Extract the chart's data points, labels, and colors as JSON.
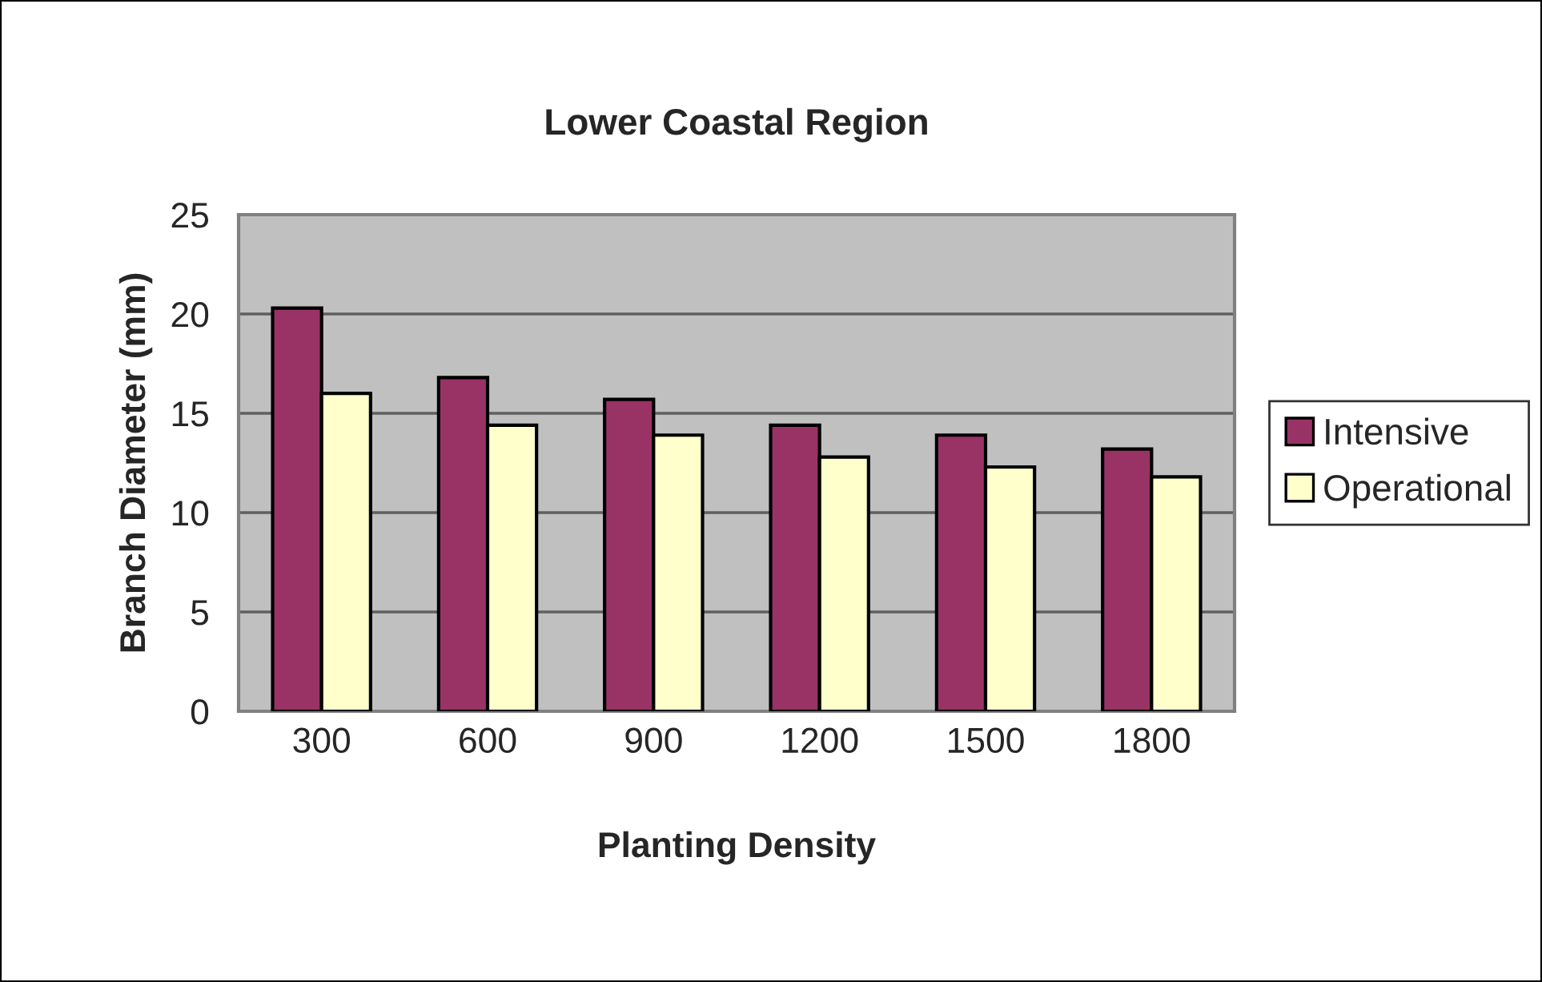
{
  "chart_data": {
    "type": "bar",
    "title": "Lower Coastal Region",
    "xlabel": "Planting Density",
    "ylabel": "Branch Diameter (mm)",
    "categories": [
      "300",
      "600",
      "900",
      "1200",
      "1500",
      "1800"
    ],
    "series": [
      {
        "name": "Intensive",
        "color": "#993366",
        "values": [
          20.3,
          16.8,
          15.7,
          14.4,
          13.9,
          13.2
        ]
      },
      {
        "name": "Operational",
        "color": "#ffffcc",
        "values": [
          16.0,
          14.4,
          13.9,
          12.8,
          12.3,
          11.8
        ]
      }
    ],
    "ylim": [
      0,
      25
    ],
    "yticks": [
      0,
      5,
      10,
      15,
      20,
      25
    ],
    "grid": "y",
    "legend": "right"
  }
}
